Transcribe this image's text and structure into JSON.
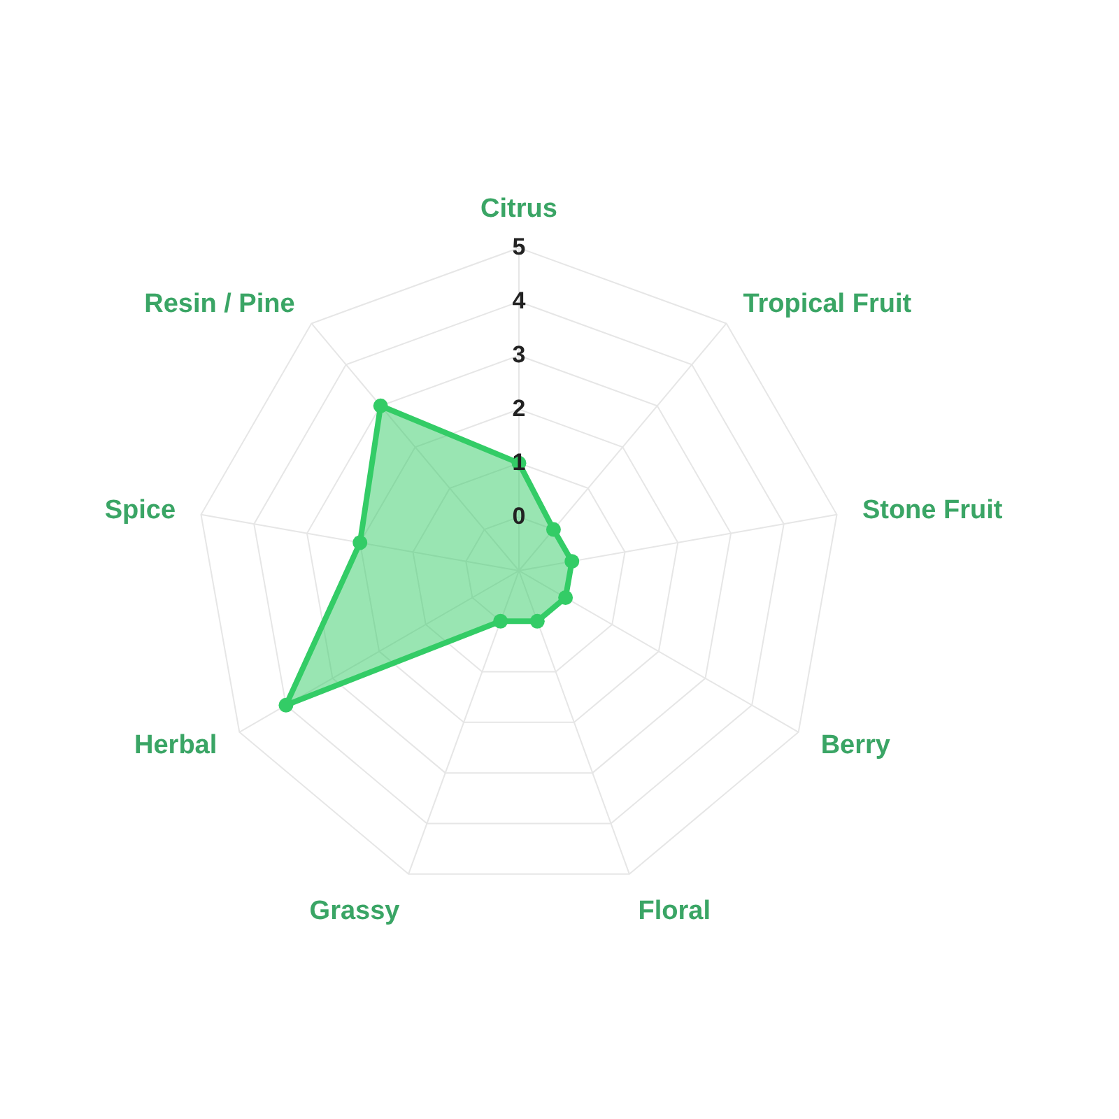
{
  "chart_data": {
    "type": "radar",
    "categories": [
      "Citrus",
      "Tropical Fruit",
      "Stone Fruit",
      "Berry",
      "Floral",
      "Grassy",
      "Herbal",
      "Spice",
      "Resin / Pine"
    ],
    "series": [
      {
        "color": "#33cc66",
        "values": [
          1,
          0,
          0,
          0,
          0,
          0,
          4,
          2,
          3
        ]
      }
    ],
    "ylim": [
      -1,
      5
    ],
    "yticks": [
      0,
      1,
      2,
      3,
      4,
      5
    ],
    "grid": true,
    "marker": "circle"
  }
}
